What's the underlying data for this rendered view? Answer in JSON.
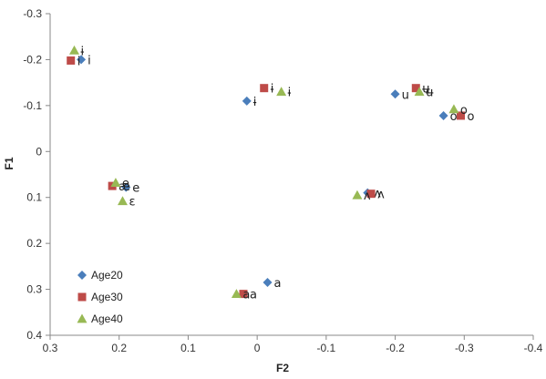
{
  "chart_data": {
    "type": "scatter",
    "xlabel": "F2",
    "ylabel": "F1",
    "xlim": [
      0.3,
      -0.4
    ],
    "ylim": [
      -0.3,
      0.4
    ],
    "x_ticks": [
      "0.3",
      "0.2",
      "0.1",
      "0",
      "-0.1",
      "-0.2",
      "-0.3",
      "-0.4"
    ],
    "y_ticks": [
      "-0.3",
      "-0.2",
      "-0.1",
      "0",
      "0.1",
      "0.2",
      "0.3",
      "0.4"
    ],
    "x_tick_values": [
      0.3,
      0.2,
      0.1,
      0,
      -0.1,
      -0.2,
      -0.3,
      -0.4
    ],
    "y_tick_values": [
      -0.3,
      -0.2,
      -0.1,
      0,
      0.1,
      0.2,
      0.3,
      0.4
    ],
    "grid": false,
    "legend_position": "bottom-left",
    "series": [
      {
        "name": "Age20",
        "marker": "diamond",
        "color": "#4a7ebb",
        "points": [
          {
            "x": 0.255,
            "y": -0.2,
            "label": "i"
          },
          {
            "x": 0.015,
            "y": -0.11,
            "label": "ɨ"
          },
          {
            "x": -0.2,
            "y": -0.125,
            "label": "u"
          },
          {
            "x": -0.27,
            "y": -0.078,
            "label": "o"
          },
          {
            "x": 0.19,
            "y": 0.078,
            "label": "e"
          },
          {
            "x": -0.16,
            "y": 0.09,
            "label": "ʌ"
          },
          {
            "x": -0.015,
            "y": 0.285,
            "label": "a"
          }
        ]
      },
      {
        "name": "Age30",
        "marker": "square",
        "color": "#be4b48",
        "points": [
          {
            "x": 0.27,
            "y": -0.198,
            "label": "i"
          },
          {
            "x": -0.01,
            "y": -0.138,
            "label": "ɨ"
          },
          {
            "x": -0.23,
            "y": -0.138,
            "label": "ʉ"
          },
          {
            "x": -0.295,
            "y": -0.078,
            "label": "o"
          },
          {
            "x": 0.21,
            "y": 0.075,
            "label": "æ"
          },
          {
            "x": -0.165,
            "y": 0.092,
            "label": "ʌ"
          },
          {
            "x": 0.02,
            "y": 0.31,
            "label": "a"
          }
        ]
      },
      {
        "name": "Age40",
        "marker": "triangle",
        "color": "#98b954",
        "points": [
          {
            "x": 0.265,
            "y": -0.22,
            "label": "ɨ"
          },
          {
            "x": -0.035,
            "y": -0.13,
            "label": "ɨ"
          },
          {
            "x": -0.235,
            "y": -0.13,
            "label": "ʉ"
          },
          {
            "x": -0.285,
            "y": -0.092,
            "label": "o"
          },
          {
            "x": 0.205,
            "y": 0.068,
            "label": "e"
          },
          {
            "x": 0.195,
            "y": 0.108,
            "label": "ɛ"
          },
          {
            "x": -0.145,
            "y": 0.095,
            "label": "ʌ"
          },
          {
            "x": 0.03,
            "y": 0.31,
            "label": "a"
          }
        ]
      }
    ]
  }
}
